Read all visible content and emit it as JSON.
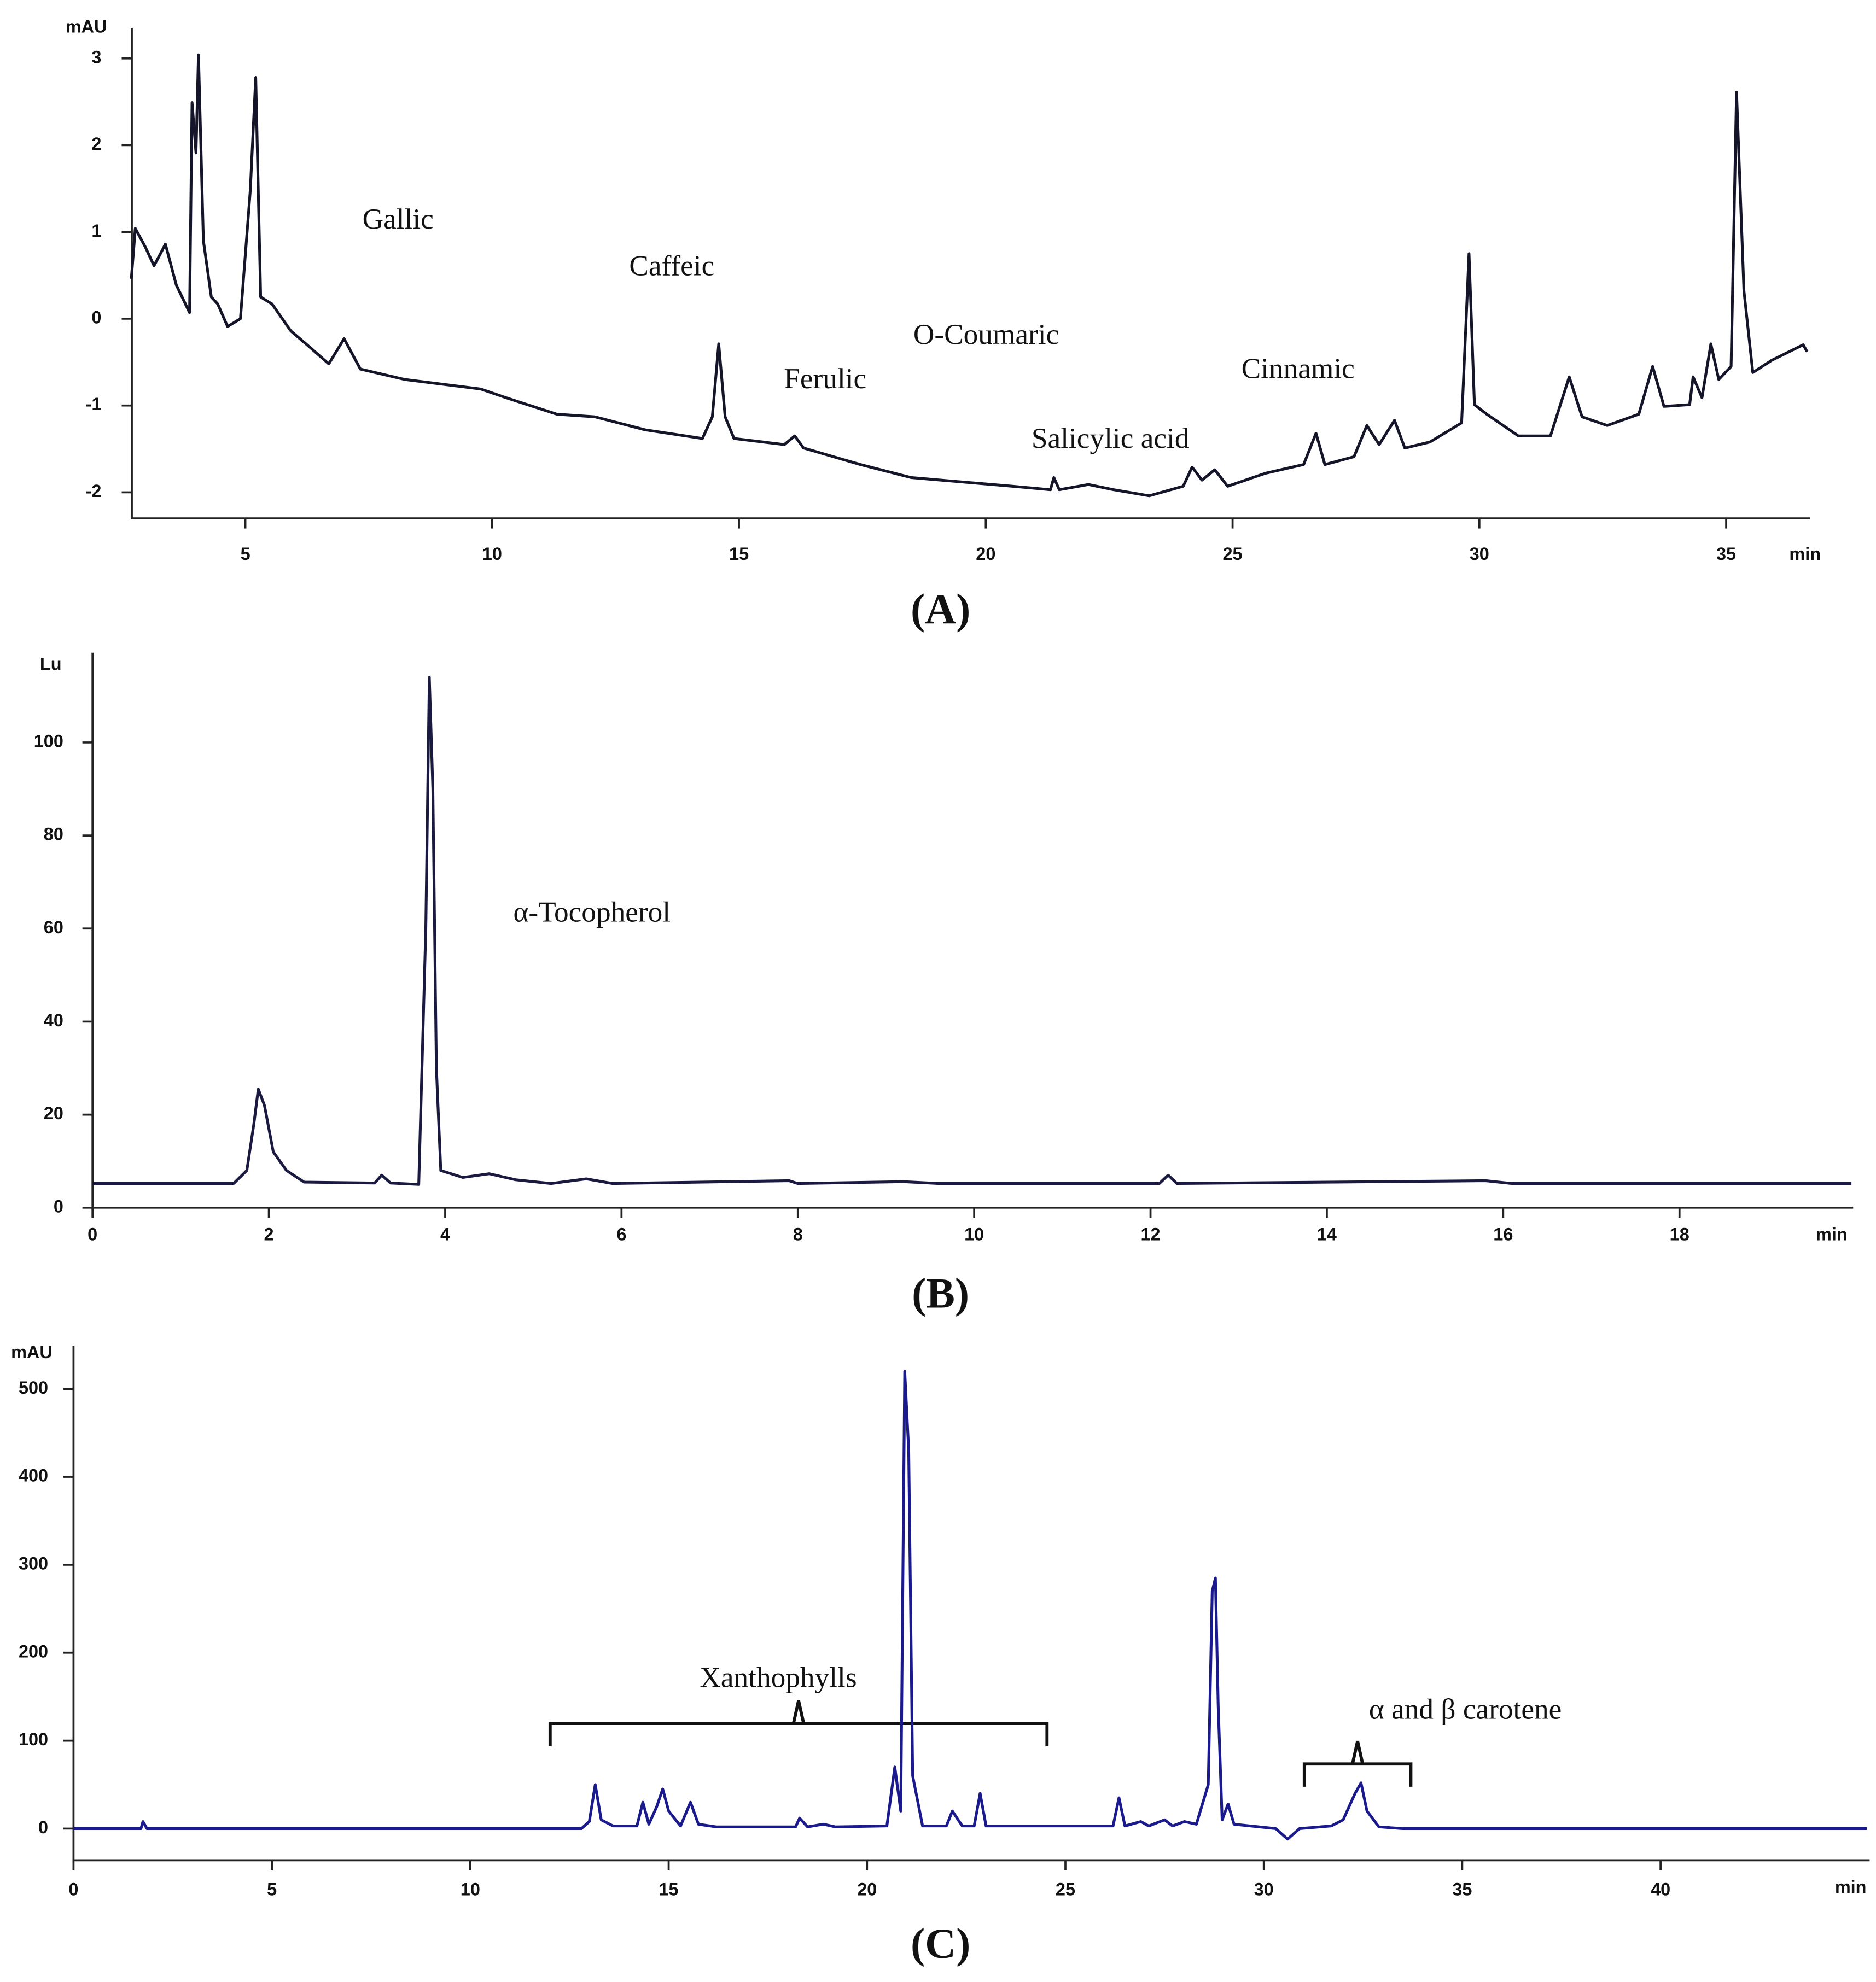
{
  "chart_data": [
    {
      "type": "line",
      "title": "(A)",
      "ylabel": "mAU",
      "xlabel": "min",
      "color": "#15152a",
      "annotations": [
        "Gallic",
        "Caffeic",
        "Ferulic",
        "O-Coumaric",
        "Salicylic acid",
        "Cinnamic"
      ],
      "xlim": [
        2.7,
        36.7
      ],
      "ylim": [
        -2.3,
        3.35
      ],
      "xticks": [
        5,
        10,
        15,
        20,
        25,
        30,
        35
      ],
      "yticks": [
        -2,
        -1,
        0,
        1,
        2,
        3
      ],
      "x": [
        2.69,
        2.77,
        2.97,
        3.15,
        3.28,
        3.38,
        3.6,
        3.87,
        3.92,
        4.0,
        4.05,
        4.15,
        4.31,
        4.44,
        4.64,
        4.9,
        5.1,
        5.21,
        5.31,
        5.54,
        5.92,
        6.31,
        6.69,
        7.0,
        7.33,
        8.23,
        9.77,
        10.28,
        11.31,
        12.08,
        13.1,
        14.26,
        14.46,
        14.59,
        14.72,
        14.9,
        15.92,
        16.13,
        16.31,
        17.46,
        18.49,
        19.51,
        20.54,
        21.31,
        21.38,
        21.49,
        22.08,
        22.59,
        23.31,
        24.0,
        24.18,
        24.38,
        24.64,
        24.9,
        25.67,
        26.44,
        26.69,
        26.87,
        27.46,
        27.72,
        27.97,
        28.28,
        28.49,
        29.0,
        29.64,
        29.79,
        29.9,
        30.15,
        30.79,
        31.44,
        31.82,
        32.08,
        32.59,
        33.23,
        33.51,
        33.74,
        34.26,
        34.33,
        34.51,
        34.69,
        34.85,
        35.1,
        35.21,
        35.36,
        35.54,
        35.92,
        36.56,
        36.64
      ],
      "values": [
        0.46,
        1.04,
        0.83,
        0.61,
        0.75,
        0.86,
        0.39,
        0.07,
        2.49,
        1.91,
        3.04,
        0.9,
        0.25,
        0.17,
        -0.09,
        0,
        1.48,
        2.78,
        0.25,
        0.17,
        -0.14,
        -0.33,
        -0.52,
        -0.23,
        -0.58,
        -0.7,
        -0.81,
        -0.91,
        -1.1,
        -1.13,
        -1.28,
        -1.38,
        -1.13,
        -0.29,
        -1.13,
        -1.38,
        -1.45,
        -1.35,
        -1.49,
        -1.68,
        -1.83,
        -1.88,
        -1.93,
        -1.97,
        -1.83,
        -1.97,
        -1.91,
        -1.97,
        -2.04,
        -1.93,
        -1.71,
        -1.86,
        -1.74,
        -1.93,
        -1.78,
        -1.68,
        -1.32,
        -1.68,
        -1.59,
        -1.23,
        -1.45,
        -1.17,
        -1.49,
        -1.42,
        -1.2,
        0.75,
        -0.99,
        -1.1,
        -1.35,
        -1.35,
        -0.67,
        -1.13,
        -1.23,
        -1.1,
        -0.55,
        -1.01,
        -0.99,
        -0.67,
        -0.91,
        -0.29,
        -0.7,
        -0.55,
        2.61,
        0.32,
        -0.62,
        -0.48,
        -0.3,
        -0.38
      ]
    },
    {
      "type": "line",
      "title": "(B)",
      "ylabel": "Lu",
      "xlabel": "min",
      "color": "#1a1a40",
      "annotations": [
        "α-Tocopherol"
      ],
      "xlim": [
        0,
        19.97
      ],
      "ylim": [
        0,
        119.3
      ],
      "xticks": [
        0,
        2,
        4,
        6,
        8,
        10,
        12,
        14,
        16,
        18
      ],
      "yticks": [
        0,
        20,
        40,
        60,
        80,
        100
      ],
      "x": [
        0,
        1.6,
        1.75,
        1.83,
        1.88,
        1.95,
        2.05,
        2.2,
        2.4,
        3.2,
        3.28,
        3.38,
        3.7,
        3.78,
        3.82,
        3.86,
        3.9,
        3.95,
        4.2,
        4.5,
        4.8,
        5.2,
        5.6,
        5.9,
        7.9,
        8.0,
        9.2,
        9.6,
        12.1,
        12.2,
        12.3,
        15.8,
        16.1,
        19.95
      ],
      "values": [
        5.2,
        5.2,
        8,
        18,
        25.5,
        22,
        12,
        8,
        5.5,
        5.3,
        7,
        5.3,
        5.0,
        60,
        114,
        90,
        30,
        8,
        6.5,
        7.3,
        6,
        5.2,
        6.2,
        5.2,
        5.8,
        5.2,
        5.6,
        5.2,
        5.2,
        7,
        5.2,
        5.8,
        5.2,
        5.2
      ]
    },
    {
      "type": "line",
      "title": "(C)",
      "ylabel": "mAU",
      "xlabel": "min",
      "color": "#1a1a8c",
      "annotations": [
        "Xanthophylls",
        "α and β carotene"
      ],
      "xlim": [
        0,
        45.27
      ],
      "ylim": [
        -36,
        549
      ],
      "xticks": [
        0,
        5,
        10,
        15,
        20,
        25,
        30,
        35,
        40
      ],
      "yticks": [
        0,
        100,
        200,
        300,
        400,
        500
      ],
      "x": [
        0,
        1.7,
        1.75,
        1.85,
        9,
        12.8,
        13.0,
        13.15,
        13.3,
        13.6,
        14.2,
        14.35,
        14.5,
        14.7,
        14.85,
        15.0,
        15.3,
        15.55,
        15.75,
        16.2,
        18.2,
        18.3,
        18.5,
        18.9,
        19.2,
        20.5,
        20.7,
        20.85,
        20.95,
        21.05,
        21.15,
        21.4,
        22.0,
        22.15,
        22.4,
        22.7,
        22.85,
        23.0,
        26.2,
        26.35,
        26.5,
        26.9,
        27.1,
        27.5,
        27.7,
        28.0,
        28.3,
        28.6,
        28.7,
        28.78,
        28.85,
        28.95,
        29.1,
        29.25,
        30.3,
        30.6,
        30.9,
        31.7,
        32.0,
        32.3,
        32.45,
        32.6,
        32.9,
        33.5,
        45.2
      ],
      "values": [
        0,
        0,
        8,
        0,
        0,
        0,
        8,
        50,
        10,
        3,
        3,
        30,
        5,
        25,
        45,
        20,
        3,
        30,
        5,
        2,
        2,
        12,
        2,
        5,
        2,
        3,
        70,
        20,
        520,
        430,
        60,
        3,
        3,
        20,
        3,
        3,
        40,
        3,
        3,
        35,
        3,
        8,
        3,
        10,
        3,
        8,
        5,
        50,
        270,
        285,
        140,
        10,
        28,
        5,
        0,
        -12,
        0,
        3,
        10,
        40,
        52,
        20,
        2,
        0,
        0
      ]
    }
  ]
}
